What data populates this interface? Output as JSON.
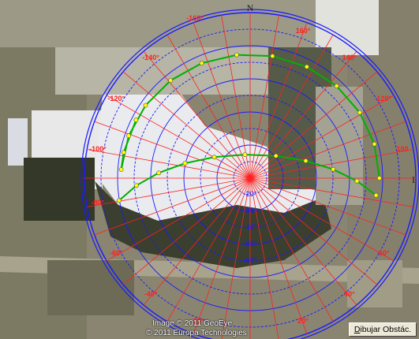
{
  "compass": {
    "north": "N",
    "east_partial": "I"
  },
  "azimuth_labels_upper": [
    {
      "text": "-140°",
      "az": -140
    },
    {
      "text": "160°",
      "az": 160
    },
    {
      "text": "140°",
      "az": 140
    },
    {
      "text": "-120°",
      "az": -120
    },
    {
      "text": "120°",
      "az": 120
    },
    {
      "text": "-100°",
      "az": -100
    },
    {
      "text": "100",
      "az": 100
    },
    {
      "text": "-80°",
      "az": -80
    },
    {
      "text": "-60°",
      "az": -60
    },
    {
      "text": "60°",
      "az": 60
    },
    {
      "text": "-40°",
      "az": -40
    },
    {
      "text": "40°",
      "az": 40
    },
    {
      "text": "-20°",
      "az": -20
    },
    {
      "text": "20°",
      "az": 20
    }
  ],
  "top_label_left": "-160°",
  "elevation_labels": [
    "-60°",
    "-50°",
    "-40°",
    "-30°",
    "-20°"
  ],
  "attribution": {
    "line1": "Image © 2011 GeoEye",
    "line2": "© 2011 Europa Technologies"
  },
  "draw_button": {
    "underlined": "D",
    "rest": "ibujar Obstác."
  },
  "colors": {
    "rings": "#1a1aff",
    "radials": "#ff2020",
    "sun_path": "#00b000",
    "labels": "#ff2020",
    "elev_labels": "#1a1aff",
    "points": "#ffff00"
  }
}
